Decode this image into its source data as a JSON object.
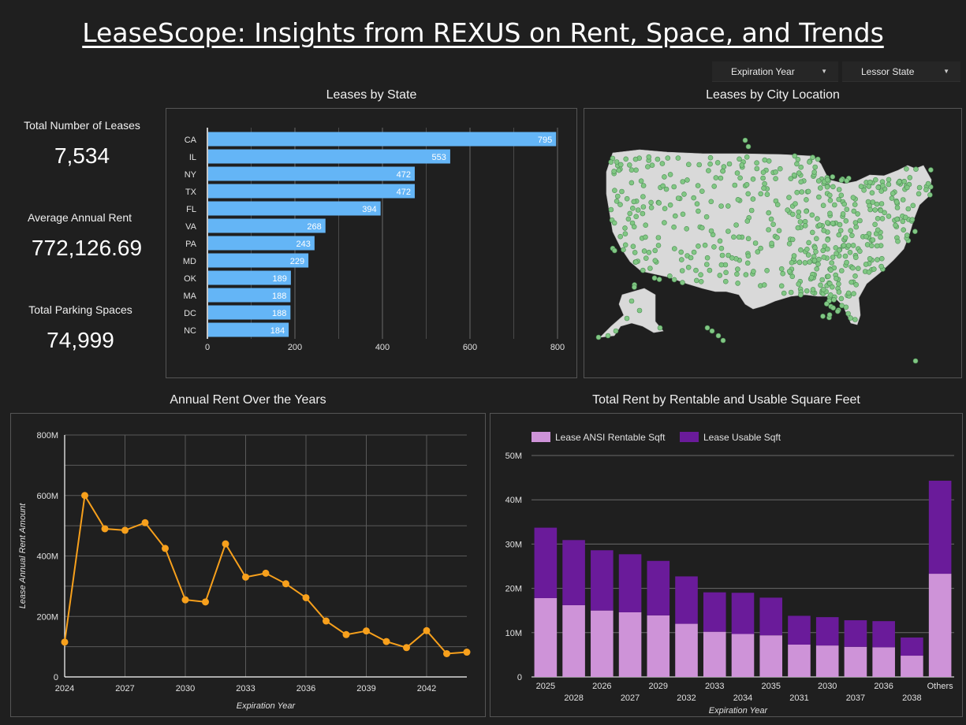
{
  "header": {
    "title": "LeaseScope: Insights from REXUS on Rent, Space, and Trends"
  },
  "filters": [
    {
      "label": "Expiration Year"
    },
    {
      "label": "Lessor State"
    }
  ],
  "kpis": [
    {
      "label": "Total Number of Leases",
      "value": "7,534"
    },
    {
      "label": "Average Annual Rent",
      "value": "772,126.69"
    },
    {
      "label": "Total Parking Spaces",
      "value": "74,999"
    }
  ],
  "panels": {
    "state_title": "Leases by State",
    "map_title": "Leases by City Location",
    "line_title": "Annual Rent Over the Years",
    "stack_title": "Total Rent by Rentable and Usable Square Feet"
  },
  "colors": {
    "bar": "#64b5f6",
    "line": "#f7a01c",
    "ansi": "#ce93d8",
    "usable": "#6a1b9a",
    "map_dot": "#81c784",
    "land": "#d9d9d9"
  },
  "chart_data": [
    {
      "type": "bar",
      "orientation": "horizontal",
      "title": "Leases by State",
      "categories": [
        "CA",
        "IL",
        "NY",
        "TX",
        "FL",
        "VA",
        "PA",
        "MD",
        "OK",
        "MA",
        "DC",
        "NC"
      ],
      "values": [
        795,
        553,
        472,
        472,
        394,
        268,
        243,
        229,
        189,
        188,
        188,
        184
      ],
      "xlim": [
        0,
        800
      ],
      "xticks": [
        "0",
        "200",
        "400",
        "600",
        "800"
      ],
      "grid": true
    },
    {
      "type": "line",
      "title": "Annual Rent Over the Years",
      "xlabel": "Expiration Year",
      "ylabel": "Lease Annual Rent Amount",
      "x": [
        2024,
        2025,
        2026,
        2027,
        2028,
        2029,
        2030,
        2031,
        2032,
        2033,
        2034,
        2035,
        2036,
        2037,
        2038,
        2039,
        2040,
        2041,
        2042,
        2043,
        2044
      ],
      "y": [
        115,
        600,
        490,
        485,
        510,
        425,
        255,
        248,
        440,
        330,
        343,
        308,
        262,
        185,
        140,
        152,
        117,
        97,
        153,
        77,
        82
      ],
      "y_unit": "M",
      "ylim": [
        0,
        800
      ],
      "yticks": [
        "0",
        "200M",
        "400M",
        "600M",
        "800M"
      ],
      "xticks": [
        "2024",
        "2027",
        "2030",
        "2033",
        "2036",
        "2039",
        "2042"
      ],
      "grid": true
    },
    {
      "type": "bar",
      "stacked": true,
      "title": "Total Rent by Rentable and Usable Square Feet",
      "xlabel": "Expiration Year",
      "categories": [
        "2025",
        "2028",
        "2026",
        "2027",
        "2029",
        "2032",
        "2033",
        "2034",
        "2035",
        "2031",
        "2030",
        "2037",
        "2036",
        "2038",
        "Others"
      ],
      "series": [
        {
          "name": "Lease ANSI Rentable Sqft",
          "values": [
            17.8,
            16.2,
            15.0,
            14.6,
            13.9,
            12.0,
            10.2,
            9.7,
            9.4,
            7.3,
            7.1,
            6.8,
            6.7,
            4.8,
            23.3
          ]
        },
        {
          "name": "Lease Usable Sqft",
          "values": [
            15.9,
            14.7,
            13.6,
            13.1,
            12.3,
            10.7,
            8.9,
            9.3,
            8.5,
            6.5,
            6.4,
            6.0,
            5.9,
            4.1,
            21.0
          ]
        }
      ],
      "y_unit": "M",
      "ylim": [
        0,
        50
      ],
      "yticks": [
        "0",
        "10M",
        "20M",
        "30M",
        "40M",
        "50M"
      ],
      "legend": "top-left",
      "grid": true
    }
  ]
}
